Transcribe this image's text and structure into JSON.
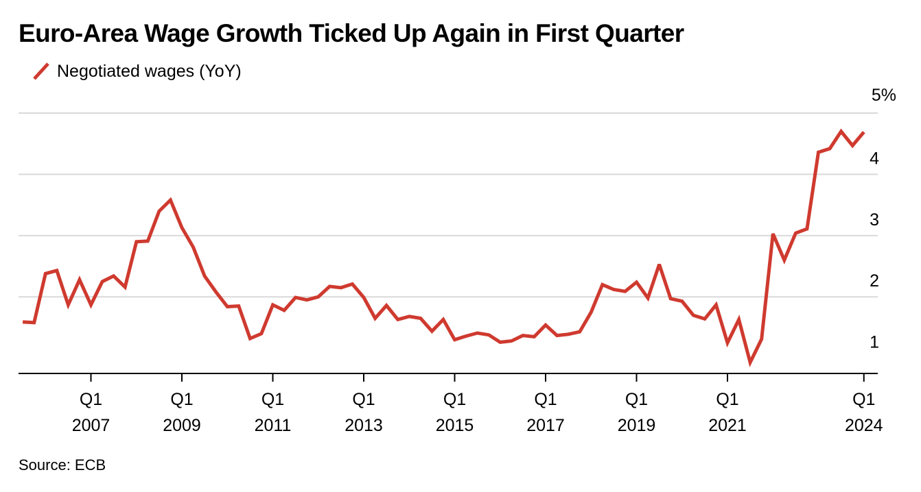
{
  "title": "Euro-Area Wage Growth Ticked Up Again in First Quarter",
  "source": "Source: ECB",
  "colors": {
    "line": "#cf3a2f",
    "grid": "#d9d9d9",
    "axis": "#000000"
  },
  "chart_data": {
    "type": "line",
    "title": "Euro-Area Wage Growth Ticked Up Again in First Quarter",
    "legend": {
      "placement": "top-left",
      "entries": [
        "Negotiated wages (YoY)"
      ]
    },
    "grid": true,
    "y_axis": {
      "position": "right",
      "range": [
        0.75,
        5
      ],
      "ticks": [
        {
          "value": 5,
          "label": "5%"
        },
        {
          "value": 4,
          "label": "4"
        },
        {
          "value": 3,
          "label": "3"
        },
        {
          "value": 2,
          "label": "2"
        },
        {
          "value": 1,
          "label": "1"
        }
      ],
      "gridlines": [
        2,
        3,
        4,
        5
      ]
    },
    "x_axis": {
      "range": [
        "2005 Q1",
        "2025 Q1"
      ],
      "ticks": [
        {
          "quarter": "2007 Q1",
          "line1": "Q1",
          "line2": "2007"
        },
        {
          "quarter": "2009 Q1",
          "line1": "Q1",
          "line2": "2009"
        },
        {
          "quarter": "2011 Q1",
          "line1": "Q1",
          "line2": "2011"
        },
        {
          "quarter": "2013 Q1",
          "line1": "Q1",
          "line2": "2013"
        },
        {
          "quarter": "2015 Q1",
          "line1": "Q1",
          "line2": "2015"
        },
        {
          "quarter": "2017 Q1",
          "line1": "Q1",
          "line2": "2017"
        },
        {
          "quarter": "2019 Q1",
          "line1": "Q1",
          "line2": "2019"
        },
        {
          "quarter": "2021 Q1",
          "line1": "Q1",
          "line2": "2021"
        },
        {
          "quarter": "2024 Q1",
          "line1": "Q1",
          "line2": "2024"
        }
      ]
    },
    "series": [
      {
        "name": "Negotiated wages (YoY)",
        "points": [
          [
            "2005 Q3",
            1.59
          ],
          [
            "2005 Q4",
            1.58
          ],
          [
            "2006 Q1",
            2.38
          ],
          [
            "2006 Q2",
            2.43
          ],
          [
            "2006 Q3",
            1.87
          ],
          [
            "2006 Q4",
            2.28
          ],
          [
            "2007 Q1",
            1.87
          ],
          [
            "2007 Q2",
            2.25
          ],
          [
            "2007 Q3",
            2.34
          ],
          [
            "2007 Q4",
            2.16
          ],
          [
            "2008 Q1",
            2.9
          ],
          [
            "2008 Q2",
            2.91
          ],
          [
            "2008 Q3",
            3.4
          ],
          [
            "2008 Q4",
            3.58
          ],
          [
            "2009 Q1",
            3.13
          ],
          [
            "2009 Q2",
            2.81
          ],
          [
            "2009 Q3",
            2.34
          ],
          [
            "2009 Q4",
            2.08
          ],
          [
            "2010 Q1",
            1.84
          ],
          [
            "2010 Q2",
            1.85
          ],
          [
            "2010 Q3",
            1.32
          ],
          [
            "2010 Q4",
            1.4
          ],
          [
            "2011 Q1",
            1.87
          ],
          [
            "2011 Q2",
            1.78
          ],
          [
            "2011 Q3",
            1.99
          ],
          [
            "2011 Q4",
            1.95
          ],
          [
            "2012 Q1",
            2.0
          ],
          [
            "2012 Q2",
            2.17
          ],
          [
            "2012 Q3",
            2.15
          ],
          [
            "2012 Q4",
            2.21
          ],
          [
            "2013 Q1",
            1.99
          ],
          [
            "2013 Q2",
            1.65
          ],
          [
            "2013 Q3",
            1.86
          ],
          [
            "2013 Q4",
            1.63
          ],
          [
            "2014 Q1",
            1.68
          ],
          [
            "2014 Q2",
            1.65
          ],
          [
            "2014 Q3",
            1.44
          ],
          [
            "2014 Q4",
            1.63
          ],
          [
            "2015 Q1",
            1.3
          ],
          [
            "2015 Q2",
            1.36
          ],
          [
            "2015 Q3",
            1.41
          ],
          [
            "2015 Q4",
            1.38
          ],
          [
            "2016 Q1",
            1.26
          ],
          [
            "2016 Q2",
            1.28
          ],
          [
            "2016 Q3",
            1.37
          ],
          [
            "2016 Q4",
            1.35
          ],
          [
            "2017 Q1",
            1.54
          ],
          [
            "2017 Q2",
            1.37
          ],
          [
            "2017 Q3",
            1.39
          ],
          [
            "2017 Q4",
            1.43
          ],
          [
            "2018 Q1",
            1.75
          ],
          [
            "2018 Q2",
            2.2
          ],
          [
            "2018 Q3",
            2.12
          ],
          [
            "2018 Q4",
            2.09
          ],
          [
            "2019 Q1",
            2.24
          ],
          [
            "2019 Q2",
            1.98
          ],
          [
            "2019 Q3",
            2.53
          ],
          [
            "2019 Q4",
            1.97
          ],
          [
            "2020 Q1",
            1.93
          ],
          [
            "2020 Q2",
            1.7
          ],
          [
            "2020 Q3",
            1.64
          ],
          [
            "2020 Q4",
            1.87
          ],
          [
            "2021 Q1",
            1.25
          ],
          [
            "2021 Q2",
            1.63
          ],
          [
            "2021 Q3",
            0.93
          ],
          [
            "2021 Q4",
            1.31
          ],
          [
            "2022 Q1",
            3.03
          ],
          [
            "2022 Q2",
            2.6
          ],
          [
            "2022 Q3",
            3.04
          ],
          [
            "2022 Q4",
            3.11
          ],
          [
            "2023 Q1",
            4.36
          ],
          [
            "2023 Q2",
            4.42
          ],
          [
            "2023 Q3",
            4.7
          ],
          [
            "2023 Q4",
            4.47
          ],
          [
            "2024 Q1",
            4.69
          ]
        ]
      }
    ]
  }
}
